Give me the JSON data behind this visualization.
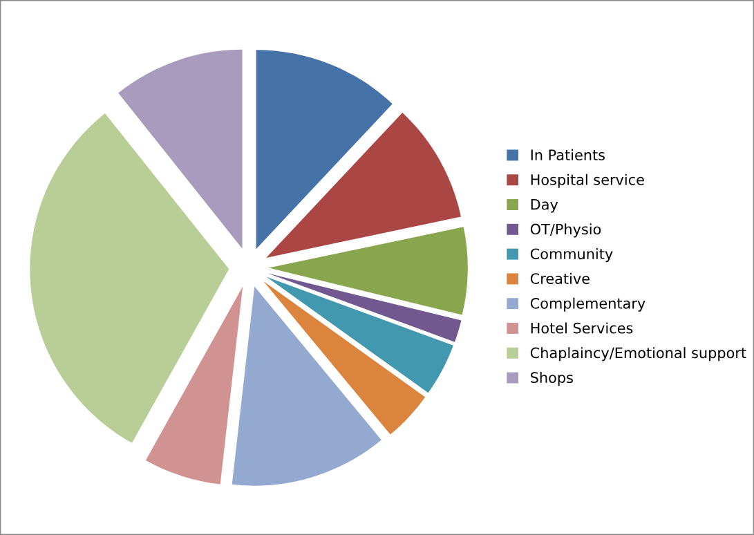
{
  "chart_data": {
    "type": "pie",
    "categories": [
      "In Patients",
      "Hospital service",
      "Day",
      "OT/Physio",
      "Community",
      "Creative",
      "Complementary",
      "Hotel Services",
      "Chaplaincy/Emotional support",
      "Shops"
    ],
    "values": [
      12,
      9.7,
      7.1,
      1.8,
      4.3,
      4.1,
      12.8,
      6.3,
      31.2,
      10.7
    ],
    "colors": [
      "#4572a7",
      "#aa4643",
      "#89a54e",
      "#71588f",
      "#4198af",
      "#db843d",
      "#93a9cf",
      "#d19392",
      "#b9cd96",
      "#a99bbd"
    ],
    "legend": "right"
  }
}
